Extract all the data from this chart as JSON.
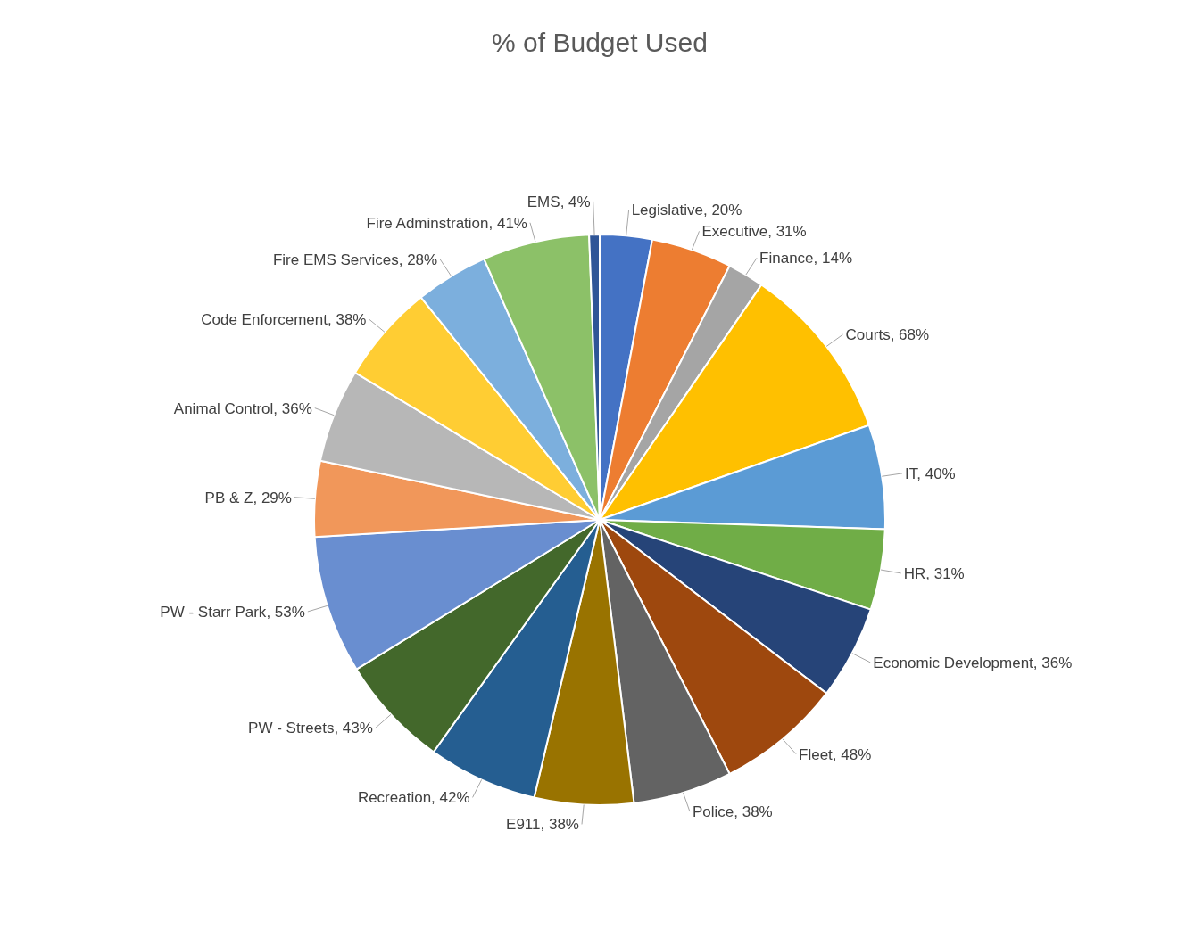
{
  "chart_data": {
    "type": "pie",
    "title": "% of Budget Used",
    "categories": [
      "Legislative",
      "Executive",
      "Finance",
      "Courts",
      "IT",
      "HR",
      "Economic Development",
      "Fleet",
      "Police",
      "E911",
      "Recreation",
      "PW - Streets",
      "PW - Starr Park",
      "PB & Z",
      "Animal Control",
      "Code Enforcement",
      "Fire EMS Services",
      "Fire Adminstration",
      "EMS"
    ],
    "values": [
      20,
      31,
      14,
      68,
      40,
      31,
      36,
      48,
      38,
      38,
      42,
      43,
      53,
      29,
      36,
      38,
      28,
      41,
      4
    ],
    "value_labels": [
      ", 20%",
      ", 31%",
      ", 14%",
      ", 68%",
      ", 40%",
      ", 31%",
      ", 36%",
      ", 48%",
      ", 38%",
      ", 38%",
      ", 42%",
      ", 43%",
      ", 53%",
      ", 29%",
      ", 36%",
      ", 38%",
      ", 28%",
      ", 41%",
      ", 4%"
    ],
    "colors": [
      "#4472c4",
      "#ed7d31",
      "#a5a5a5",
      "#ffc000",
      "#5b9bd5",
      "#70ad47",
      "#264478",
      "#9e480e",
      "#636363",
      "#997300",
      "#255e91",
      "#43682b",
      "#698ed0",
      "#f1975a",
      "#b7b7b7",
      "#ffcd33",
      "#7cafdd",
      "#8cc168",
      "#2f5597"
    ]
  }
}
